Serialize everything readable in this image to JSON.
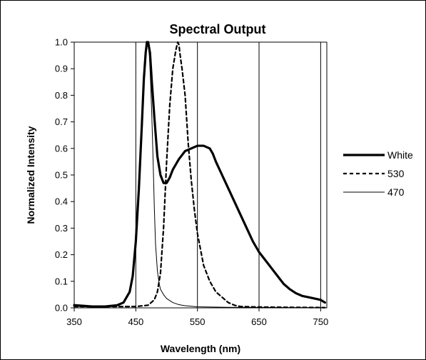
{
  "chart_data": {
    "type": "line",
    "title": "Spectral Output",
    "xlabel": "Wavelength (nm)",
    "ylabel": "Normalized Intensity",
    "xlim": [
      350,
      760
    ],
    "ylim": [
      0.0,
      1.0
    ],
    "x_ticks": [
      "350",
      "450",
      "550",
      "650",
      "750"
    ],
    "y_ticks": [
      "0.0",
      "0.1",
      "0.2",
      "0.3",
      "0.4",
      "0.5",
      "0.6",
      "0.7",
      "0.8",
      "0.9",
      "1.0"
    ],
    "grid": "vertical",
    "legend_position": "right",
    "series": [
      {
        "name": "White",
        "style": "thick-solid",
        "color": "#000000",
        "x": [
          350,
          380,
          400,
          420,
          430,
          440,
          445,
          450,
          455,
          460,
          463,
          466,
          468,
          470,
          473,
          476,
          480,
          485,
          490,
          495,
          500,
          505,
          510,
          515,
          520,
          530,
          540,
          550,
          560,
          570,
          575,
          580,
          590,
          600,
          610,
          620,
          630,
          640,
          650,
          660,
          670,
          680,
          690,
          700,
          710,
          720,
          730,
          740,
          750,
          757
        ],
        "y": [
          0.01,
          0.005,
          0.005,
          0.01,
          0.02,
          0.06,
          0.12,
          0.25,
          0.45,
          0.7,
          0.86,
          0.96,
          1.0,
          1.0,
          0.96,
          0.85,
          0.72,
          0.57,
          0.5,
          0.47,
          0.47,
          0.49,
          0.52,
          0.54,
          0.56,
          0.59,
          0.6,
          0.61,
          0.61,
          0.6,
          0.58,
          0.55,
          0.5,
          0.45,
          0.4,
          0.35,
          0.3,
          0.25,
          0.21,
          0.18,
          0.15,
          0.12,
          0.09,
          0.07,
          0.055,
          0.045,
          0.04,
          0.035,
          0.03,
          0.02
        ]
      },
      {
        "name": "530",
        "style": "dashed",
        "color": "#000000",
        "x": [
          350,
          400,
          450,
          470,
          480,
          485,
          490,
          495,
          500,
          505,
          510,
          515,
          518,
          520,
          522,
          525,
          530,
          535,
          540,
          545,
          550,
          560,
          570,
          580,
          590,
          600,
          610,
          620,
          650,
          700,
          757
        ],
        "y": [
          0.005,
          0.005,
          0.005,
          0.01,
          0.03,
          0.06,
          0.13,
          0.3,
          0.55,
          0.76,
          0.9,
          0.97,
          1.0,
          0.99,
          0.95,
          0.9,
          0.8,
          0.62,
          0.48,
          0.37,
          0.28,
          0.16,
          0.1,
          0.06,
          0.04,
          0.02,
          0.01,
          0.005,
          0.003,
          0.002,
          0.001
        ]
      },
      {
        "name": "470",
        "style": "thin-solid",
        "color": "#000000",
        "x": [
          350,
          400,
          420,
          430,
          440,
          445,
          450,
          455,
          460,
          463,
          466,
          468,
          470,
          472,
          474,
          476,
          478,
          480,
          482,
          485,
          488,
          490,
          495,
          500,
          510,
          520,
          530,
          550,
          600,
          700,
          757
        ],
        "y": [
          0.005,
          0.005,
          0.01,
          0.02,
          0.06,
          0.12,
          0.25,
          0.45,
          0.7,
          0.86,
          0.96,
          1.0,
          0.99,
          0.95,
          0.85,
          0.72,
          0.56,
          0.38,
          0.24,
          0.14,
          0.09,
          0.07,
          0.05,
          0.035,
          0.02,
          0.012,
          0.008,
          0.004,
          0.002,
          0.001,
          0.001
        ]
      }
    ]
  }
}
